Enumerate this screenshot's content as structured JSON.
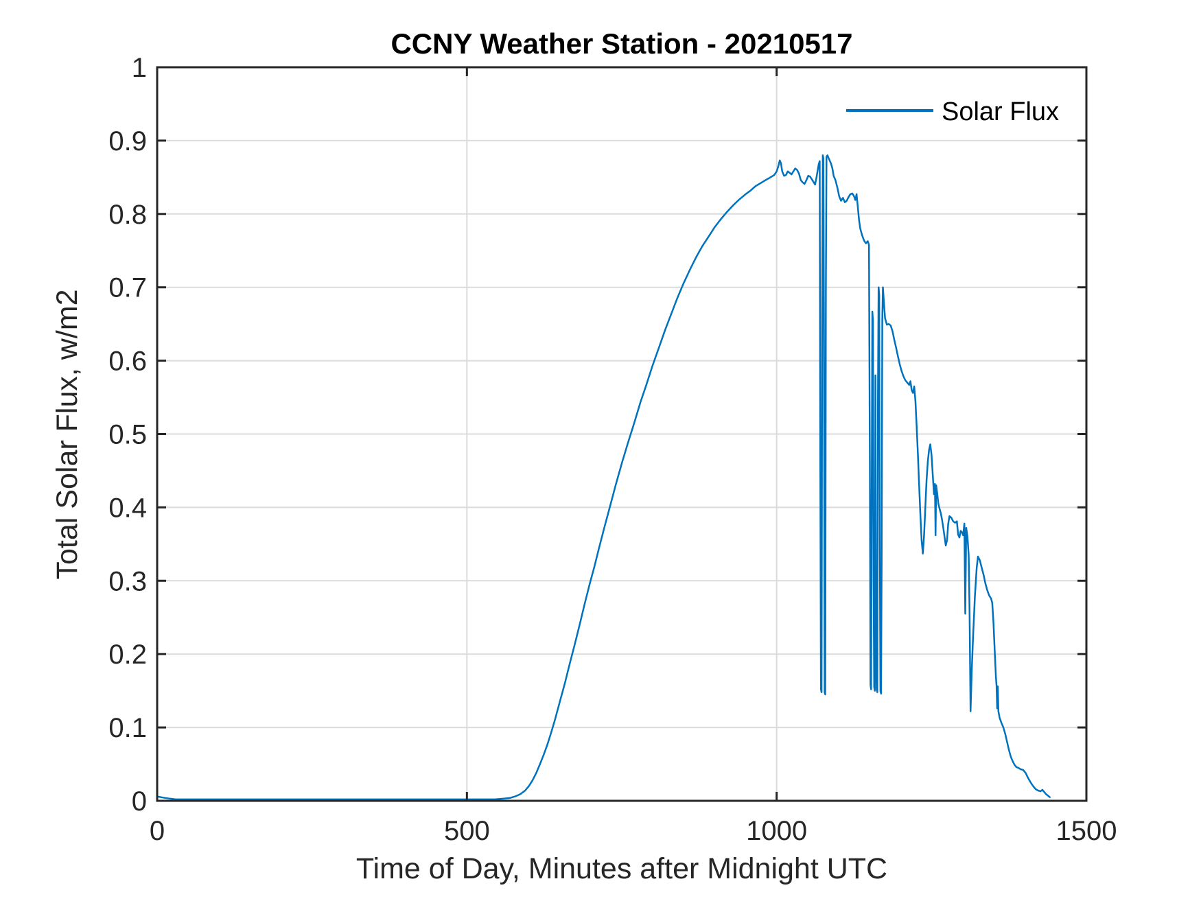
{
  "figure": {
    "title": "CCNY Weather Station - 20210517",
    "xlabel": "Time of Day, Minutes after Midnight UTC",
    "ylabel": "Total Solar Flux, w/m2",
    "legend": {
      "entries": [
        "Solar Flux"
      ],
      "position": "northeast",
      "boxed": false
    },
    "colors": {
      "line": "#0072BD",
      "axis": "#262626",
      "grid": "#DBDBDB",
      "background": "#FFFFFF",
      "title": "#000000"
    }
  },
  "chart_data": {
    "type": "line",
    "title": "CCNY Weather Station - 20210517",
    "xlabel": "Time of Day, Minutes after Midnight UTC",
    "ylabel": "Total Solar Flux, w/m2",
    "xlim": [
      0,
      1500
    ],
    "ylim": [
      0,
      1
    ],
    "xticks": [
      0,
      500,
      1000,
      1500
    ],
    "yticks": [
      0,
      0.1,
      0.2,
      0.3,
      0.4,
      0.5,
      0.6,
      0.7,
      0.8,
      0.9,
      1
    ],
    "grid": true,
    "legend_position": "northeast",
    "series": [
      {
        "name": "Solar Flux",
        "color": "#0072BD",
        "points": [
          [
            0,
            0.006
          ],
          [
            6,
            0.005
          ],
          [
            12,
            0.004
          ],
          [
            20,
            0.003
          ],
          [
            30,
            0.002
          ],
          [
            60,
            0.002
          ],
          [
            120,
            0.002
          ],
          [
            180,
            0.002
          ],
          [
            240,
            0.002
          ],
          [
            300,
            0.002
          ],
          [
            360,
            0.002
          ],
          [
            420,
            0.002
          ],
          [
            480,
            0.002
          ],
          [
            520,
            0.002
          ],
          [
            545,
            0.002
          ],
          [
            560,
            0.003
          ],
          [
            570,
            0.004
          ],
          [
            578,
            0.006
          ],
          [
            586,
            0.009
          ],
          [
            594,
            0.014
          ],
          [
            600,
            0.02
          ],
          [
            606,
            0.028
          ],
          [
            612,
            0.038
          ],
          [
            618,
            0.05
          ],
          [
            624,
            0.063
          ],
          [
            630,
            0.077
          ],
          [
            636,
            0.093
          ],
          [
            642,
            0.11
          ],
          [
            650,
            0.135
          ],
          [
            658,
            0.16
          ],
          [
            666,
            0.187
          ],
          [
            674,
            0.213
          ],
          [
            682,
            0.24
          ],
          [
            690,
            0.268
          ],
          [
            698,
            0.295
          ],
          [
            706,
            0.32
          ],
          [
            714,
            0.347
          ],
          [
            722,
            0.373
          ],
          [
            730,
            0.398
          ],
          [
            740,
            0.43
          ],
          [
            750,
            0.46
          ],
          [
            760,
            0.488
          ],
          [
            770,
            0.515
          ],
          [
            780,
            0.543
          ],
          [
            790,
            0.568
          ],
          [
            800,
            0.594
          ],
          [
            810,
            0.618
          ],
          [
            820,
            0.642
          ],
          [
            830,
            0.664
          ],
          [
            840,
            0.686
          ],
          [
            850,
            0.706
          ],
          [
            860,
            0.724
          ],
          [
            870,
            0.741
          ],
          [
            880,
            0.756
          ],
          [
            890,
            0.769
          ],
          [
            900,
            0.782
          ],
          [
            910,
            0.793
          ],
          [
            920,
            0.803
          ],
          [
            930,
            0.812
          ],
          [
            940,
            0.82
          ],
          [
            950,
            0.827
          ],
          [
            958,
            0.832
          ],
          [
            966,
            0.838
          ],
          [
            974,
            0.842
          ],
          [
            982,
            0.846
          ],
          [
            990,
            0.85
          ],
          [
            996,
            0.853
          ],
          [
            1000,
            0.858
          ],
          [
            1003,
            0.866
          ],
          [
            1005,
            0.873
          ],
          [
            1007,
            0.869
          ],
          [
            1009,
            0.858
          ],
          [
            1012,
            0.852
          ],
          [
            1015,
            0.853
          ],
          [
            1018,
            0.858
          ],
          [
            1021,
            0.856
          ],
          [
            1024,
            0.854
          ],
          [
            1027,
            0.858
          ],
          [
            1030,
            0.862
          ],
          [
            1033,
            0.86
          ],
          [
            1036,
            0.855
          ],
          [
            1039,
            0.846
          ],
          [
            1042,
            0.843
          ],
          [
            1045,
            0.841
          ],
          [
            1048,
            0.846
          ],
          [
            1051,
            0.852
          ],
          [
            1054,
            0.851
          ],
          [
            1057,
            0.847
          ],
          [
            1060,
            0.843
          ],
          [
            1062,
            0.84
          ],
          [
            1064,
            0.848
          ],
          [
            1066,
            0.858
          ],
          [
            1068,
            0.868
          ],
          [
            1069.5,
            0.872
          ],
          [
            1070.5,
            0.45
          ],
          [
            1071.5,
            0.152
          ],
          [
            1072.5,
            0.148
          ],
          [
            1073.5,
            0.66
          ],
          [
            1074.5,
            0.88
          ],
          [
            1075.5,
            0.876
          ],
          [
            1076.5,
            0.6
          ],
          [
            1077.5,
            0.148
          ],
          [
            1078.5,
            0.145
          ],
          [
            1079.5,
            0.7
          ],
          [
            1080.5,
            0.878
          ],
          [
            1082,
            0.88
          ],
          [
            1084,
            0.876
          ],
          [
            1086,
            0.872
          ],
          [
            1088,
            0.868
          ],
          [
            1090,
            0.862
          ],
          [
            1092,
            0.852
          ],
          [
            1095,
            0.846
          ],
          [
            1098,
            0.836
          ],
          [
            1101,
            0.824
          ],
          [
            1104,
            0.818
          ],
          [
            1107,
            0.822
          ],
          [
            1110,
            0.816
          ],
          [
            1113,
            0.818
          ],
          [
            1116,
            0.823
          ],
          [
            1119,
            0.827
          ],
          [
            1122,
            0.828
          ],
          [
            1125,
            0.824
          ],
          [
            1127,
            0.819
          ],
          [
            1129,
            0.827
          ],
          [
            1131,
            0.81
          ],
          [
            1133,
            0.792
          ],
          [
            1135,
            0.78
          ],
          [
            1138,
            0.771
          ],
          [
            1141,
            0.764
          ],
          [
            1144,
            0.76
          ],
          [
            1147,
            0.763
          ],
          [
            1149,
            0.758
          ],
          [
            1150.5,
            0.46
          ],
          [
            1151.5,
            0.158
          ],
          [
            1152.5,
            0.152
          ],
          [
            1153.5,
            0.42
          ],
          [
            1154.5,
            0.667
          ],
          [
            1155.5,
            0.655
          ],
          [
            1156.5,
            0.3
          ],
          [
            1157.5,
            0.155
          ],
          [
            1158.5,
            0.15
          ],
          [
            1159.5,
            0.58
          ],
          [
            1160.5,
            0.22
          ],
          [
            1161.5,
            0.152
          ],
          [
            1162.5,
            0.148
          ],
          [
            1163.5,
            0.55
          ],
          [
            1164.5,
            0.7
          ],
          [
            1165.5,
            0.69
          ],
          [
            1166.5,
            0.35
          ],
          [
            1167.5,
            0.15
          ],
          [
            1168.5,
            0.146
          ],
          [
            1169.5,
            0.33
          ],
          [
            1170.5,
            0.655
          ],
          [
            1171.5,
            0.7
          ],
          [
            1173,
            0.682
          ],
          [
            1175,
            0.658
          ],
          [
            1178,
            0.649
          ],
          [
            1181,
            0.65
          ],
          [
            1184,
            0.648
          ],
          [
            1187,
            0.64
          ],
          [
            1190,
            0.628
          ],
          [
            1193,
            0.617
          ],
          [
            1196,
            0.605
          ],
          [
            1199,
            0.594
          ],
          [
            1202,
            0.585
          ],
          [
            1205,
            0.578
          ],
          [
            1208,
            0.573
          ],
          [
            1211,
            0.57
          ],
          [
            1214,
            0.567
          ],
          [
            1216,
            0.572
          ],
          [
            1218,
            0.56
          ],
          [
            1220,
            0.556
          ],
          [
            1222,
            0.565
          ],
          [
            1224,
            0.545
          ],
          [
            1226,
            0.51
          ],
          [
            1228,
            0.472
          ],
          [
            1230,
            0.43
          ],
          [
            1232,
            0.39
          ],
          [
            1234,
            0.355
          ],
          [
            1236,
            0.337
          ],
          [
            1238,
            0.362
          ],
          [
            1240,
            0.4
          ],
          [
            1242,
            0.437
          ],
          [
            1244,
            0.462
          ],
          [
            1246,
            0.478
          ],
          [
            1248,
            0.486
          ],
          [
            1250,
            0.472
          ],
          [
            1252,
            0.445
          ],
          [
            1254,
            0.418
          ],
          [
            1255.5,
            0.432
          ],
          [
            1256.5,
            0.362
          ],
          [
            1257.5,
            0.43
          ],
          [
            1259,
            0.42
          ],
          [
            1261,
            0.405
          ],
          [
            1263,
            0.398
          ],
          [
            1265,
            0.392
          ],
          [
            1267,
            0.383
          ],
          [
            1269,
            0.372
          ],
          [
            1271,
            0.36
          ],
          [
            1273,
            0.348
          ],
          [
            1275,
            0.355
          ],
          [
            1277,
            0.378
          ],
          [
            1279,
            0.388
          ],
          [
            1282,
            0.386
          ],
          [
            1285,
            0.381
          ],
          [
            1288,
            0.379
          ],
          [
            1291,
            0.381
          ],
          [
            1293,
            0.363
          ],
          [
            1295,
            0.359
          ],
          [
            1297,
            0.368
          ],
          [
            1299,
            0.366
          ],
          [
            1301,
            0.362
          ],
          [
            1303,
            0.378
          ],
          [
            1304.5,
            0.255
          ],
          [
            1306,
            0.372
          ],
          [
            1308,
            0.36
          ],
          [
            1310,
            0.335
          ],
          [
            1311.5,
            0.255
          ],
          [
            1313,
            0.122
          ],
          [
            1315,
            0.178
          ],
          [
            1317,
            0.222
          ],
          [
            1320,
            0.278
          ],
          [
            1323,
            0.318
          ],
          [
            1325,
            0.333
          ],
          [
            1328,
            0.328
          ],
          [
            1331,
            0.318
          ],
          [
            1334,
            0.308
          ],
          [
            1337,
            0.296
          ],
          [
            1340,
            0.287
          ],
          [
            1343,
            0.28
          ],
          [
            1346,
            0.276
          ],
          [
            1348,
            0.27
          ],
          [
            1350,
            0.243
          ],
          [
            1352,
            0.205
          ],
          [
            1354,
            0.168
          ],
          [
            1355,
            0.157
          ],
          [
            1356,
            0.126
          ],
          [
            1357,
            0.156
          ],
          [
            1358,
            0.122
          ],
          [
            1360,
            0.113
          ],
          [
            1363,
            0.106
          ],
          [
            1366,
            0.1
          ],
          [
            1369,
            0.091
          ],
          [
            1372,
            0.08
          ],
          [
            1375,
            0.069
          ],
          [
            1378,
            0.06
          ],
          [
            1381,
            0.054
          ],
          [
            1384,
            0.049
          ],
          [
            1387,
            0.046
          ],
          [
            1390,
            0.045
          ],
          [
            1394,
            0.043
          ],
          [
            1398,
            0.042
          ],
          [
            1402,
            0.038
          ],
          [
            1406,
            0.031
          ],
          [
            1410,
            0.025
          ],
          [
            1414,
            0.02
          ],
          [
            1418,
            0.016
          ],
          [
            1422,
            0.014
          ],
          [
            1426,
            0.013
          ],
          [
            1429,
            0.015
          ],
          [
            1432,
            0.012
          ],
          [
            1435,
            0.009
          ],
          [
            1438,
            0.007
          ],
          [
            1441,
            0.005
          ]
        ]
      }
    ]
  }
}
